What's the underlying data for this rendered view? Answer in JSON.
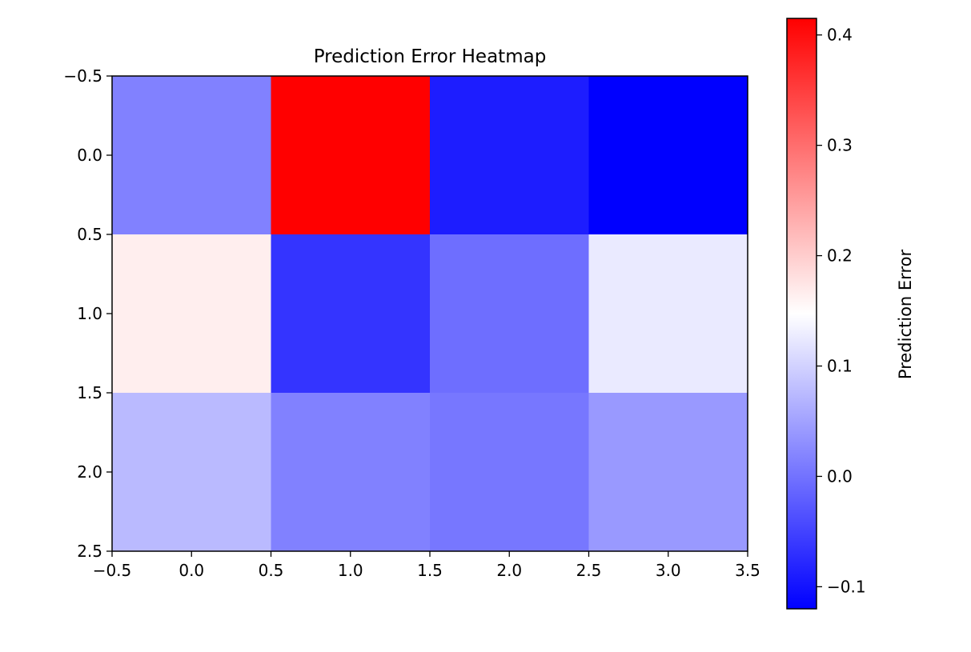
{
  "chart_data": {
    "type": "heatmap",
    "title": "Prediction Error Heatmap",
    "xlabel": "",
    "ylabel": "",
    "xlim": [
      -0.5,
      3.5
    ],
    "ylim": [
      2.5,
      -0.5
    ],
    "x_ticks": [
      "−0.5",
      "0.0",
      "0.5",
      "1.0",
      "1.5",
      "2.0",
      "2.5",
      "3.0",
      "3.5"
    ],
    "y_ticks": [
      "−0.5",
      "0.0",
      "0.5",
      "1.0",
      "1.5",
      "2.0",
      "2.5"
    ],
    "values": [
      [
        0.015,
        0.415,
        -0.09,
        -0.12
      ],
      [
        0.165,
        -0.065,
        -0.005,
        0.125
      ],
      [
        0.075,
        0.015,
        0.005,
        0.04
      ]
    ],
    "colormap": "bwr",
    "color_range": [
      -0.12,
      0.415
    ],
    "colorbar": {
      "label": "Prediction Error",
      "ticks": [
        "0.4",
        "0.3",
        "0.2",
        "0.1",
        "0.0",
        "−0.1"
      ],
      "colors": {
        "low": "#0000ff",
        "mid": "#ffffff",
        "high": "#ff0000"
      }
    },
    "grid": false
  }
}
